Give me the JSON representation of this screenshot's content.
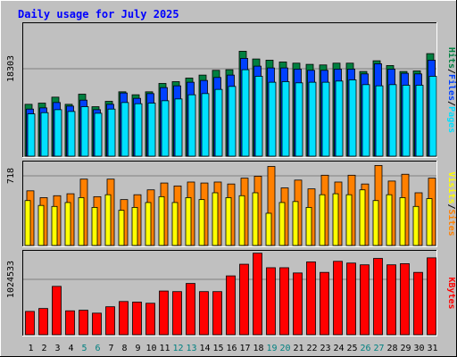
{
  "title": "Daily usage for July 2025",
  "colors": {
    "background": "#c0c0c0",
    "panel": "#c0c0c0",
    "hits": "#008040",
    "files": "#0040ff",
    "pages": "#00e0ff",
    "visits": "#ffff00",
    "sites": "#ff8000",
    "kbytes": "#ff0000",
    "title": "#0000ff",
    "weekend_label": "#008080",
    "weekday_label": "#000000",
    "grid": "#808080"
  },
  "chart_data": [
    {
      "type": "bar",
      "title": "Daily usage for July 2025",
      "x": [
        1,
        2,
        3,
        4,
        5,
        6,
        7,
        8,
        9,
        10,
        11,
        12,
        13,
        14,
        15,
        16,
        17,
        18,
        19,
        20,
        21,
        22,
        23,
        24,
        25,
        26,
        27,
        28,
        29,
        30,
        31
      ],
      "weekend_days": [
        5,
        6,
        12,
        13,
        19,
        20,
        26,
        27
      ],
      "y_tick_label": "18303",
      "ylabel_parts": [
        "Pages",
        "/",
        "Files",
        "/",
        "Hits"
      ],
      "ylim": [
        0,
        22000
      ],
      "series": [
        {
          "name": "Hits",
          "values": [
            8700,
            8900,
            9900,
            8700,
            10400,
            8300,
            9200,
            10800,
            10300,
            10800,
            12200,
            12500,
            13100,
            13600,
            14400,
            14500,
            17600,
            16300,
            16100,
            15800,
            15600,
            15400,
            15300,
            15600,
            15600,
            14200,
            16000,
            15200,
            14200,
            14300,
            17200
          ]
        },
        {
          "name": "Files",
          "values": [
            7900,
            8100,
            9000,
            8400,
            9400,
            7800,
            8700,
            10600,
            9700,
            10500,
            11500,
            11800,
            12400,
            12700,
            13200,
            13600,
            16400,
            15100,
            14800,
            14800,
            14600,
            14400,
            14400,
            14600,
            14600,
            13800,
            15500,
            14600,
            13900,
            13800,
            16100
          ]
        },
        {
          "name": "Pages",
          "values": [
            7100,
            7300,
            7800,
            7500,
            8300,
            7200,
            7900,
            9000,
            8800,
            8900,
            9300,
            9600,
            10300,
            10500,
            11200,
            11700,
            14500,
            13400,
            12400,
            12500,
            12300,
            12400,
            12400,
            12600,
            12800,
            12000,
            11800,
            12000,
            11900,
            11900,
            13400
          ]
        }
      ]
    },
    {
      "type": "bar",
      "y_tick_label": "718",
      "ylabel_parts": [
        "Sites",
        "/",
        "Visits"
      ],
      "ylim": [
        0,
        842
      ],
      "series": [
        {
          "name": "Visits",
          "values": [
            460,
            410,
            400,
            440,
            490,
            390,
            520,
            360,
            390,
            440,
            500,
            440,
            490,
            470,
            540,
            490,
            510,
            540,
            330,
            440,
            450,
            390,
            520,
            530,
            520,
            570,
            460,
            520,
            490,
            400,
            480
          ]
        },
        {
          "name": "Sites",
          "values": [
            560,
            490,
            510,
            530,
            680,
            500,
            680,
            470,
            520,
            570,
            640,
            610,
            650,
            640,
            650,
            630,
            690,
            710,
            810,
            590,
            670,
            580,
            720,
            650,
            720,
            630,
            820,
            660,
            730,
            540,
            690
          ]
        }
      ]
    },
    {
      "type": "bar",
      "y_tick_label": "1024533",
      "ylabel_parts": [
        "KBytes"
      ],
      "ylim": [
        0,
        1410000
      ],
      "series": [
        {
          "name": "KBytes",
          "values": [
            400000,
            450000,
            830000,
            410000,
            420000,
            370000,
            480000,
            570000,
            560000,
            540000,
            750000,
            740000,
            880000,
            740000,
            740000,
            1010000,
            1210000,
            1400000,
            1150000,
            1150000,
            1060000,
            1250000,
            1070000,
            1260000,
            1230000,
            1200000,
            1310000,
            1200000,
            1220000,
            1070000,
            1320000
          ]
        }
      ]
    }
  ]
}
